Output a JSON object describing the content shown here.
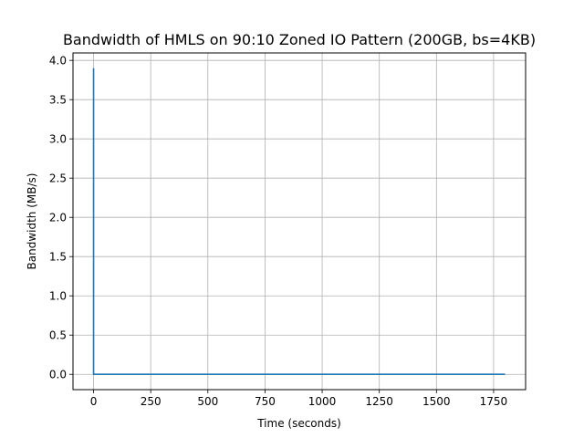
{
  "chart_data": {
    "type": "line",
    "title": "Bandwidth of HMLS on 90:10 Zoned IO Pattern (200GB, bs=4KB)",
    "xlabel": "Time (seconds)",
    "ylabel": "Bandwidth (MB/s)",
    "xlim": [
      -90,
      1890
    ],
    "ylim": [
      -0.195,
      4.095
    ],
    "xticks": [
      0,
      250,
      500,
      750,
      1000,
      1250,
      1500,
      1750
    ],
    "xtick_labels": [
      "0",
      "250",
      "500",
      "750",
      "1000",
      "1250",
      "1500",
      "1750"
    ],
    "yticks": [
      0.0,
      0.5,
      1.0,
      1.5,
      2.0,
      2.5,
      3.0,
      3.5,
      4.0
    ],
    "ytick_labels": [
      "0.0",
      "0.5",
      "1.0",
      "1.5",
      "2.0",
      "2.5",
      "3.0",
      "3.5",
      "4.0"
    ],
    "grid": true,
    "line_color": "#1f77b4",
    "series": [
      {
        "x": [
          0,
          0,
          1,
          1800
        ],
        "y": [
          3.9,
          0.0,
          0.0,
          0.0
        ]
      }
    ]
  }
}
